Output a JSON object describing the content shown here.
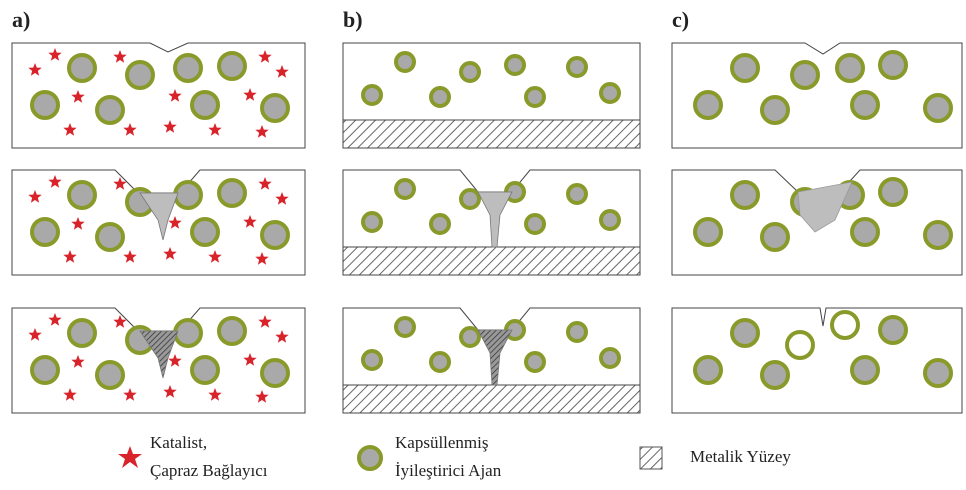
{
  "panels": [
    {
      "label": "a)"
    },
    {
      "label": "b)"
    },
    {
      "label": "c)"
    }
  ],
  "legend": [
    {
      "lines": [
        "Katalist,",
        "Çapraz Bağlayıcı"
      ]
    },
    {
      "lines": [
        "Kapsüllenmiş",
        "İyileştirici Ajan"
      ]
    },
    {
      "lines": [
        "Metalik Yüzey"
      ]
    }
  ]
}
